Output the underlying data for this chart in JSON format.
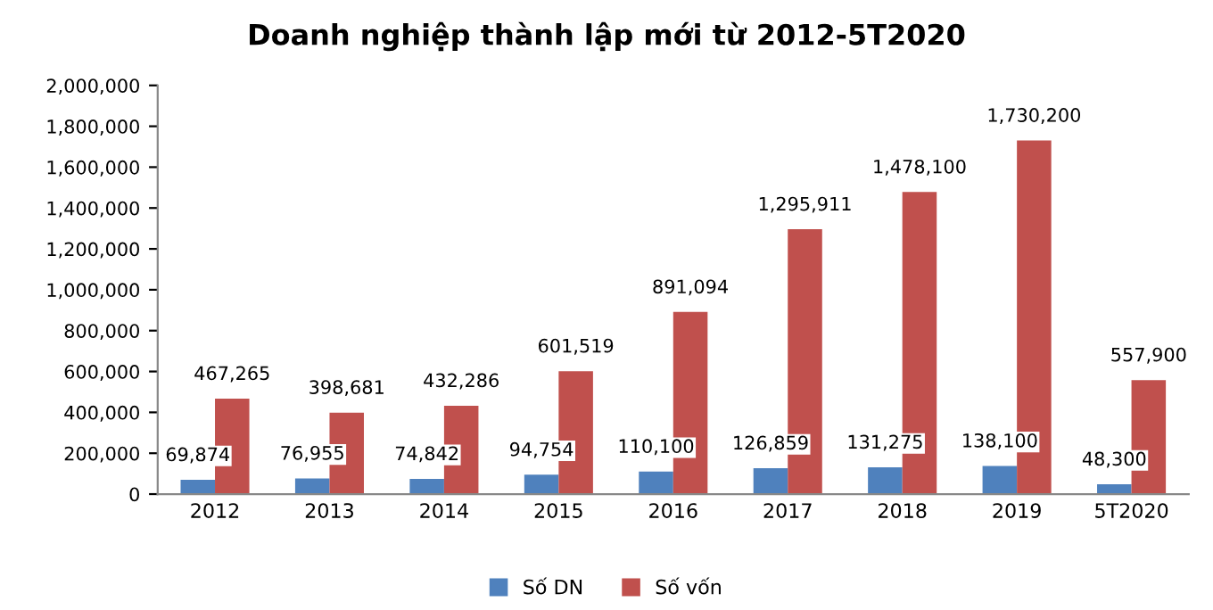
{
  "chart_data": {
    "type": "bar",
    "title": "Doanh nghiệp thành lập mới từ 2012-5T2020",
    "categories": [
      "2012",
      "2013",
      "2014",
      "2015",
      "2016",
      "2017",
      "2018",
      "2019",
      "5T2020"
    ],
    "series": [
      {
        "name": "Số DN",
        "color": "#4f81bd",
        "values": [
          69874,
          76955,
          74842,
          94754,
          110100,
          126859,
          131275,
          138100,
          48300
        ],
        "value_labels": [
          "69,874",
          "76,955",
          "74,842",
          "94,754",
          "110,100",
          "126,859",
          "131,275",
          "138,100",
          "48,300"
        ]
      },
      {
        "name": "Số vốn",
        "color": "#c0504d",
        "values": [
          467265,
          398681,
          432286,
          601519,
          891094,
          1295911,
          1478100,
          1730200,
          557900
        ],
        "value_labels": [
          "467,265",
          "398,681",
          "432,286",
          "601,519",
          "891,094",
          "1,295,911",
          "1,478,100",
          "1,730,200",
          "557,900"
        ]
      }
    ],
    "ylim": [
      0,
      2000000
    ],
    "yticks": [
      {
        "value": 0,
        "label": "0"
      },
      {
        "value": 200000,
        "label": "200,000"
      },
      {
        "value": 400000,
        "label": "400,000"
      },
      {
        "value": 600000,
        "label": "600,000"
      },
      {
        "value": 800000,
        "label": "800,000"
      },
      {
        "value": 1000000,
        "label": "1,000,000"
      },
      {
        "value": 1200000,
        "label": "1,200,000"
      },
      {
        "value": 1400000,
        "label": "1,400,000"
      },
      {
        "value": 1600000,
        "label": "1,600,000"
      },
      {
        "value": 1800000,
        "label": "1,800,000"
      },
      {
        "value": 2000000,
        "label": "2,000,000"
      }
    ],
    "grid": false,
    "legend": "bottom"
  }
}
